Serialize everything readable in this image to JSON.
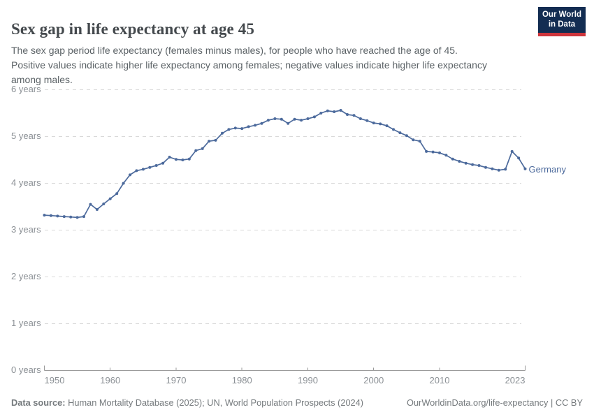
{
  "header": {
    "title": "Sex gap in life expectancy at age 45",
    "subtitle_lines": [
      "The sex gap period life expectancy (females minus males), for people who have reached the age of 45.",
      "Positive values indicate higher life expectancy among females; negative values indicate higher life expectancy",
      "among males."
    ],
    "logo": {
      "line1": "Our World",
      "line2": "in Data"
    }
  },
  "chart_data": {
    "type": "line",
    "title": "Sex gap in life expectancy at age 45",
    "xlabel": "",
    "ylabel": "years",
    "xlim": [
      1950,
      2023
    ],
    "ylim": [
      0,
      6
    ],
    "grid": "horizontal-dashed",
    "legend_position": "end-of-line",
    "ytick_labels": [
      "0 years",
      "1 years",
      "2 years",
      "3 years",
      "4 years",
      "5 years",
      "6 years"
    ],
    "xtick_labels": [
      "1950",
      "1960",
      "1970",
      "1980",
      "1990",
      "2000",
      "2010",
      "2023"
    ],
    "xticks": [
      1950,
      1960,
      1970,
      1980,
      1990,
      2000,
      2010,
      2023
    ],
    "series": [
      {
        "name": "Germany",
        "color": "#4c6a9c",
        "x": [
          1950,
          1951,
          1952,
          1953,
          1954,
          1955,
          1956,
          1957,
          1958,
          1959,
          1960,
          1961,
          1962,
          1963,
          1964,
          1965,
          1966,
          1967,
          1968,
          1969,
          1970,
          1971,
          1972,
          1973,
          1974,
          1975,
          1976,
          1977,
          1978,
          1979,
          1980,
          1981,
          1982,
          1983,
          1984,
          1985,
          1986,
          1987,
          1988,
          1989,
          1990,
          1991,
          1992,
          1993,
          1994,
          1995,
          1996,
          1997,
          1998,
          1999,
          2000,
          2001,
          2002,
          2003,
          2004,
          2005,
          2006,
          2007,
          2008,
          2009,
          2010,
          2011,
          2012,
          2013,
          2014,
          2015,
          2016,
          2017,
          2018,
          2019,
          2020,
          2021,
          2022,
          2023
        ],
        "values": [
          3.32,
          3.31,
          3.3,
          3.29,
          3.28,
          3.27,
          3.29,
          3.55,
          3.44,
          3.56,
          3.67,
          3.78,
          4.0,
          4.18,
          4.27,
          4.3,
          4.34,
          4.38,
          4.43,
          4.56,
          4.51,
          4.5,
          4.52,
          4.7,
          4.74,
          4.9,
          4.92,
          5.07,
          5.15,
          5.18,
          5.17,
          5.21,
          5.24,
          5.28,
          5.35,
          5.38,
          5.37,
          5.28,
          5.37,
          5.35,
          5.38,
          5.42,
          5.5,
          5.55,
          5.53,
          5.56,
          5.47,
          5.45,
          5.38,
          5.34,
          5.29,
          5.27,
          5.23,
          5.15,
          5.08,
          5.02,
          4.93,
          4.9,
          4.68,
          4.67,
          4.65,
          4.6,
          4.52,
          4.47,
          4.43,
          4.4,
          4.38,
          4.34,
          4.31,
          4.28,
          4.3,
          4.68,
          4.54,
          4.31
        ]
      }
    ]
  },
  "footer": {
    "source_label": "Data source:",
    "source_text": " Human Mortality Database (2025); UN, World Population Prospects (2024)",
    "link_text": "OurWorldinData.org/life-expectancy | CC BY"
  },
  "colors": {
    "series_blue": "#4c6a9c",
    "grid_gray": "#d9d9d9",
    "axis_gray": "#9a9a9a",
    "tick_label_gray": "#8b9095",
    "logo_navy": "#132d52",
    "logo_red": "#ce353c"
  }
}
